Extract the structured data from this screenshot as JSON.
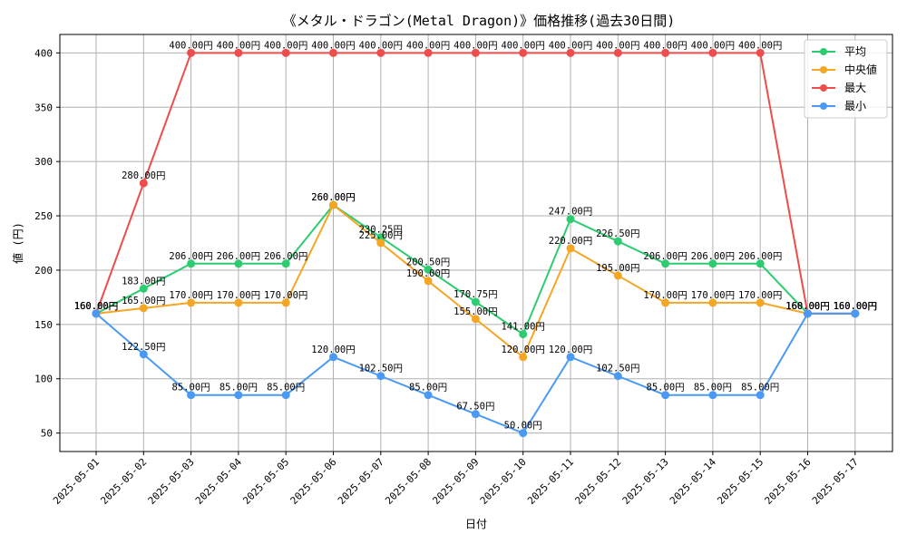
{
  "chart_data": {
    "type": "line",
    "title": "《メタル・ドラゴン(Metal Dragon)》価格推移(過去30日間)",
    "xlabel": "日付",
    "ylabel": "値 (円)",
    "ylim": [
      33,
      417
    ],
    "yticks": [
      50,
      100,
      150,
      200,
      250,
      300,
      350,
      400
    ],
    "grid": true,
    "legend_position": "top-right",
    "value_suffix": "円",
    "categories": [
      "2025-05-01",
      "2025-05-02",
      "2025-05-03",
      "2025-05-04",
      "2025-05-05",
      "2025-05-06",
      "2025-05-07",
      "2025-05-08",
      "2025-05-09",
      "2025-05-10",
      "2025-05-11",
      "2025-05-12",
      "2025-05-13",
      "2025-05-14",
      "2025-05-15",
      "2025-05-16",
      "2025-05-17"
    ],
    "series": [
      {
        "name": "平均",
        "color": "#2ecc71",
        "values": [
          160,
          183,
          206,
          206,
          206,
          260,
          230.25,
          200.5,
          170.75,
          141,
          247,
          226.5,
          206,
          206,
          206,
          160,
          160
        ]
      },
      {
        "name": "中央値",
        "color": "#f5a623",
        "values": [
          160,
          165,
          170,
          170,
          170,
          260,
          225,
          190,
          155,
          120,
          220,
          195,
          170,
          170,
          170,
          160,
          160
        ]
      },
      {
        "name": "最大",
        "color": "#ef4c4c",
        "values": [
          160,
          280,
          400,
          400,
          400,
          400,
          400,
          400,
          400,
          400,
          400,
          400,
          400,
          400,
          400,
          160,
          160
        ]
      },
      {
        "name": "最小",
        "color": "#4a9af5",
        "values": [
          160,
          122.5,
          85,
          85,
          85,
          120,
          102.5,
          85,
          67.5,
          50,
          120,
          102.5,
          85,
          85,
          85,
          160,
          160
        ]
      }
    ]
  }
}
